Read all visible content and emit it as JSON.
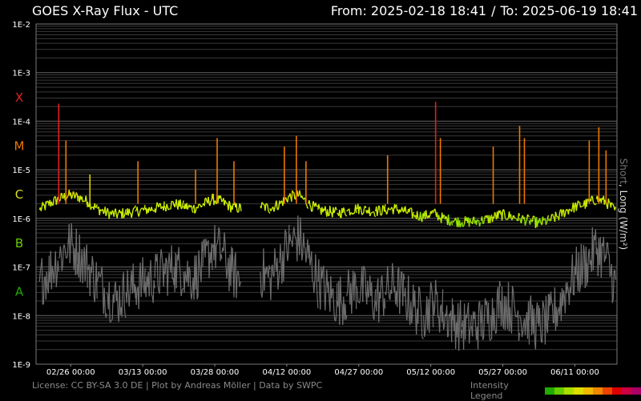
{
  "header": {
    "title": "GOES X-Ray Flux - UTC",
    "from_label": "From: 2025-02-18 18:41",
    "separator": "/",
    "to_label": "To: 2025-06-19 18:41"
  },
  "footer": {
    "license": "License: CC BY-SA 3.0 DE | Plot by Andreas Möller | Data by SWPC",
    "legend_label": "Intensity Legend",
    "legend_colors": [
      "#22aa00",
      "#66cc00",
      "#aadd00",
      "#dddd00",
      "#eebb00",
      "#ee8800",
      "#ee4400",
      "#dd0000",
      "#cc0044",
      "#aa0066"
    ]
  },
  "chart_data": {
    "type": "line",
    "title": "GOES X-Ray Flux - UTC",
    "ylabel_short": "Short",
    "ylabel_long": ", Long (W/m²)",
    "yscale": "log",
    "ylim": [
      1e-09,
      0.01
    ],
    "xlim": [
      "2025-02-18 18:41",
      "2025-06-19 18:41"
    ],
    "grid": true,
    "y_ticks": [
      {
        "value": 0.01,
        "label": "1E-2"
      },
      {
        "value": 0.001,
        "label": "1E-3"
      },
      {
        "value": 0.0001,
        "label": "1E-4"
      },
      {
        "value": 1e-05,
        "label": "1E-5"
      },
      {
        "value": 1e-06,
        "label": "1E-6"
      },
      {
        "value": 1e-07,
        "label": "1E-7"
      },
      {
        "value": 1e-08,
        "label": "1E-8"
      },
      {
        "value": 1e-09,
        "label": "1E-9"
      }
    ],
    "flare_classes": [
      {
        "label": "X",
        "value": 0.00032,
        "color": "#dd2222"
      },
      {
        "label": "M",
        "value": 3.2e-05,
        "color": "#ee7700"
      },
      {
        "label": "C",
        "value": 3.2e-06,
        "color": "#dddd22"
      },
      {
        "label": "B",
        "value": 3.2e-07,
        "color": "#66cc00"
      },
      {
        "label": "A",
        "value": 3.2e-08,
        "color": "#22aa00"
      }
    ],
    "x_ticks": [
      {
        "date": "2025-02-26 00:00",
        "label": "02/26 00:00"
      },
      {
        "date": "2025-03-13 00:00",
        "label": "03/13 00:00"
      },
      {
        "date": "2025-03-28 00:00",
        "label": "03/28 00:00"
      },
      {
        "date": "2025-04-12 00:00",
        "label": "04/12 00:00"
      },
      {
        "date": "2025-04-27 00:00",
        "label": "04/27 00:00"
      },
      {
        "date": "2025-05-12 00:00",
        "label": "05/12 00:00"
      },
      {
        "date": "2025-05-27 00:00",
        "label": "05/27 00:00"
      },
      {
        "date": "2025-06-11 00:00",
        "label": "06/11 00:00"
      }
    ],
    "series": [
      {
        "name": "Long",
        "values_basis": "estimated daily baseline flux",
        "x": [
          "2025-02-19",
          "2025-02-21",
          "2025-02-23",
          "2025-02-25",
          "2025-02-27",
          "2025-03-01",
          "2025-03-03",
          "2025-03-05",
          "2025-03-07",
          "2025-03-09",
          "2025-03-11",
          "2025-03-13",
          "2025-03-15",
          "2025-03-17",
          "2025-03-19",
          "2025-03-21",
          "2025-03-23",
          "2025-03-25",
          "2025-03-27",
          "2025-03-29",
          "2025-03-31",
          "2025-04-02",
          "2025-04-04",
          "2025-04-06",
          "2025-04-08",
          "2025-04-10",
          "2025-04-12",
          "2025-04-14",
          "2025-04-16",
          "2025-04-18",
          "2025-04-20",
          "2025-04-22",
          "2025-04-24",
          "2025-04-26",
          "2025-04-28",
          "2025-04-30",
          "2025-05-02",
          "2025-05-04",
          "2025-05-06",
          "2025-05-08",
          "2025-05-10",
          "2025-05-12",
          "2025-05-14",
          "2025-05-16",
          "2025-05-18",
          "2025-05-20",
          "2025-05-22",
          "2025-05-24",
          "2025-05-26",
          "2025-05-28",
          "2025-05-30",
          "2025-06-01",
          "2025-06-03",
          "2025-06-05",
          "2025-06-07",
          "2025-06-09",
          "2025-06-11",
          "2025-06-13",
          "2025-06-15",
          "2025-06-17",
          "2025-06-19"
        ],
        "values": [
          1.5e-06,
          2e-06,
          2.5e-06,
          3e-06,
          2.8e-06,
          2.2e-06,
          1.6e-06,
          1.3e-06,
          1.2e-06,
          1.3e-06,
          1.4e-06,
          1.5e-06,
          1.6e-06,
          1.8e-06,
          2e-06,
          1.8e-06,
          1.6e-06,
          1.9e-06,
          2.5e-06,
          2.2e-06,
          1.7e-06,
          1.6e-06,
          null,
          1.8e-06,
          1.6e-06,
          2e-06,
          2.8e-06,
          3e-06,
          2e-06,
          1.5e-06,
          1.4e-06,
          1.3e-06,
          1.4e-06,
          1.6e-06,
          1.5e-06,
          1.4e-06,
          1.5e-06,
          1.6e-06,
          1.4e-06,
          1.2e-06,
          1.1e-06,
          1.3e-06,
          1e-06,
          9e-07,
          8.5e-07,
          8.5e-07,
          9e-07,
          1e-06,
          1.2e-06,
          1.1e-06,
          1e-06,
          9e-07,
          8e-07,
          9e-07,
          1.1e-06,
          1.5e-06,
          1.8e-06,
          2e-06,
          2.5e-06,
          2.2e-06,
          1.4e-06
        ]
      },
      {
        "name": "Short",
        "values_basis": "estimated daily baseline flux",
        "x": [
          "2025-02-19",
          "2025-02-21",
          "2025-02-23",
          "2025-02-25",
          "2025-02-27",
          "2025-03-01",
          "2025-03-03",
          "2025-03-05",
          "2025-03-07",
          "2025-03-09",
          "2025-03-11",
          "2025-03-13",
          "2025-03-15",
          "2025-03-17",
          "2025-03-19",
          "2025-03-21",
          "2025-03-23",
          "2025-03-25",
          "2025-03-27",
          "2025-03-29",
          "2025-03-31",
          "2025-04-02",
          "2025-04-04",
          "2025-04-06",
          "2025-04-08",
          "2025-04-10",
          "2025-04-12",
          "2025-04-14",
          "2025-04-16",
          "2025-04-18",
          "2025-04-20",
          "2025-04-22",
          "2025-04-24",
          "2025-04-26",
          "2025-04-28",
          "2025-04-30",
          "2025-05-02",
          "2025-05-04",
          "2025-05-06",
          "2025-05-08",
          "2025-05-10",
          "2025-05-12",
          "2025-05-14",
          "2025-05-16",
          "2025-05-18",
          "2025-05-20",
          "2025-05-22",
          "2025-05-24",
          "2025-05-26",
          "2025-05-28",
          "2025-05-30",
          "2025-06-01",
          "2025-06-03",
          "2025-06-05",
          "2025-06-07",
          "2025-06-09",
          "2025-06-11",
          "2025-06-13",
          "2025-06-15",
          "2025-06-17",
          "2025-06-19"
        ],
        "values": [
          5e-08,
          8e-08,
          1.5e-07,
          3e-07,
          2e-07,
          1e-07,
          5e-08,
          3e-08,
          2e-08,
          3e-08,
          4e-08,
          5e-08,
          6e-08,
          8e-08,
          1e-07,
          8e-08,
          6e-08,
          1e-07,
          2.5e-07,
          2e-07,
          8e-08,
          5e-08,
          null,
          8e-08,
          6e-08,
          1.2e-07,
          3e-07,
          4e-07,
          1.5e-07,
          5e-08,
          3e-08,
          2e-08,
          2.5e-08,
          4e-08,
          3e-08,
          2e-08,
          3e-08,
          4e-08,
          2.5e-08,
          1.5e-08,
          1e-08,
          2e-08,
          1.2e-08,
          8e-09,
          6e-09,
          6e-09,
          7e-09,
          1e-08,
          2e-08,
          1.5e-08,
          1e-08,
          8e-09,
          6e-09,
          8e-09,
          1.5e-08,
          4e-08,
          8e-08,
          1.2e-07,
          2.5e-07,
          1.5e-07,
          4e-08
        ]
      }
    ],
    "flares": [
      {
        "date": "2025-02-23 12:00",
        "peak": 0.00023
      },
      {
        "date": "2025-02-25 00:00",
        "peak": 4e-05
      },
      {
        "date": "2025-03-02 00:00",
        "peak": 8e-06
      },
      {
        "date": "2025-03-12 00:00",
        "peak": 1.5e-05
      },
      {
        "date": "2025-03-24 00:00",
        "peak": 1e-05
      },
      {
        "date": "2025-03-28 12:00",
        "peak": 4.5e-05
      },
      {
        "date": "2025-04-01 00:00",
        "peak": 1.5e-05
      },
      {
        "date": "2025-04-11 12:00",
        "peak": 3e-05
      },
      {
        "date": "2025-04-14 00:00",
        "peak": 5e-05
      },
      {
        "date": "2025-04-16 00:00",
        "peak": 1.5e-05
      },
      {
        "date": "2025-05-03 00:00",
        "peak": 2e-05
      },
      {
        "date": "2025-05-13 00:00",
        "peak": 0.00025
      },
      {
        "date": "2025-05-14 00:00",
        "peak": 4.5e-05
      },
      {
        "date": "2025-05-25 00:00",
        "peak": 3e-05
      },
      {
        "date": "2025-05-30 12:00",
        "peak": 8e-05
      },
      {
        "date": "2025-05-31 12:00",
        "peak": 4.5e-05
      },
      {
        "date": "2025-06-14 00:00",
        "peak": 4e-05
      },
      {
        "date": "2025-06-16 00:00",
        "peak": 7.5e-05
      },
      {
        "date": "2025-06-17 12:00",
        "peak": 2.5e-05
      }
    ]
  }
}
